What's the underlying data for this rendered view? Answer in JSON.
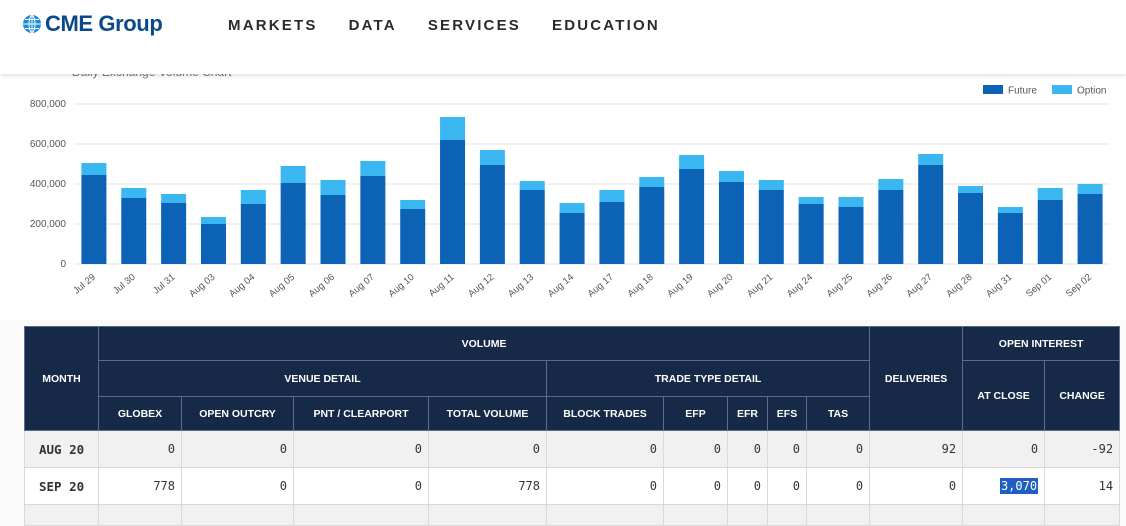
{
  "header": {
    "logo_text": "CME Group",
    "nav": [
      "MARKETS",
      "DATA",
      "SERVICES",
      "EDUCATION"
    ]
  },
  "chart_data": {
    "type": "bar",
    "stacked": true,
    "title": "Daily Exchange Volume Chart",
    "categories": [
      "Jul 29",
      "Jul 30",
      "Jul 31",
      "Aug 03",
      "Aug 04",
      "Aug 05",
      "Aug 06",
      "Aug 07",
      "Aug 10",
      "Aug 11",
      "Aug 12",
      "Aug 13",
      "Aug 14",
      "Aug 17",
      "Aug 18",
      "Aug 19",
      "Aug 20",
      "Aug 21",
      "Aug 24",
      "Aug 25",
      "Aug 26",
      "Aug 27",
      "Aug 28",
      "Aug 31",
      "Sep 01",
      "Sep 02"
    ],
    "series": [
      {
        "name": "Future",
        "color": "#0c63b6",
        "values": [
          445000,
          330000,
          305000,
          200000,
          300000,
          405000,
          345000,
          440000,
          275000,
          620000,
          495000,
          370000,
          255000,
          310000,
          385000,
          475000,
          410000,
          370000,
          300000,
          285000,
          370000,
          495000,
          355000,
          255000,
          320000,
          350000
        ]
      },
      {
        "name": "Option",
        "color": "#3ab7f0",
        "values": [
          60000,
          50000,
          45000,
          35000,
          70000,
          85000,
          75000,
          75000,
          45000,
          115000,
          75000,
          45000,
          50000,
          60000,
          50000,
          70000,
          55000,
          50000,
          35000,
          50000,
          55000,
          55000,
          35000,
          30000,
          60000,
          50000
        ]
      }
    ],
    "yticks": [
      "0",
      "200,000",
      "400,000",
      "600,000",
      "800,000"
    ],
    "ylim": [
      0,
      800000
    ],
    "grid": true,
    "legend": "top-right"
  },
  "table": {
    "headers": {
      "month": "MONTH",
      "volume": "VOLUME",
      "venue_detail": "VENUE DETAIL",
      "trade_type_detail": "TRADE TYPE DETAIL",
      "deliveries": "DELIVERIES",
      "open_interest": "OPEN INTEREST",
      "cols": [
        "GLOBEX",
        "OPEN OUTCRY",
        "PNT / CLEARPORT",
        "TOTAL VOLUME",
        "BLOCK TRADES",
        "EFP",
        "EFR",
        "EFS",
        "TAS"
      ],
      "at_close": "AT CLOSE",
      "change": "CHANGE"
    },
    "rows": [
      {
        "month": "AUG 20",
        "cells": [
          "0",
          "0",
          "0",
          "0",
          "0",
          "0",
          "0",
          "0",
          "0",
          "92",
          "0",
          "-92"
        ]
      },
      {
        "month": "SEP 20",
        "cells": [
          "778",
          "0",
          "0",
          "778",
          "0",
          "0",
          "0",
          "0",
          "0",
          "0",
          "3,070",
          "14"
        ]
      }
    ]
  }
}
